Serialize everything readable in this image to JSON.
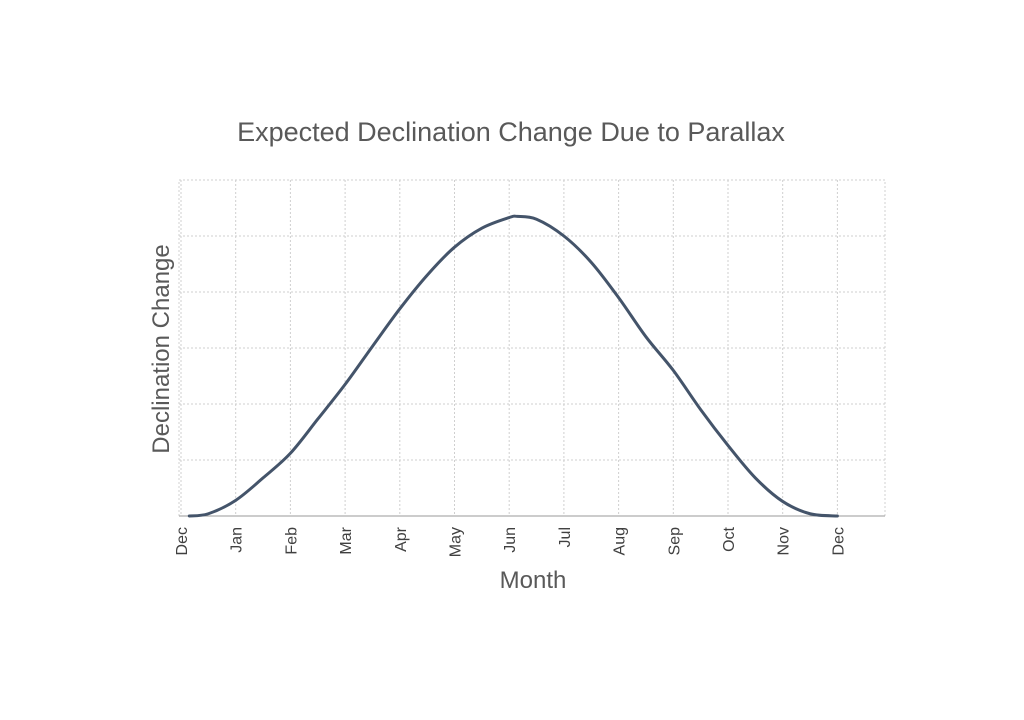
{
  "chart_data": {
    "type": "line",
    "title": "Expected Declination Change Due to Parallax",
    "xlabel": "Month",
    "ylabel": "Declination Change",
    "categories": [
      "Dec",
      "Jan",
      "Feb",
      "Mar",
      "Apr",
      "May",
      "Jun",
      "Jul",
      "Aug",
      "Sep",
      "Oct",
      "Nov",
      "Dec"
    ],
    "x": [
      0,
      1,
      2,
      3,
      4,
      5,
      6,
      7,
      8,
      9,
      10,
      11,
      12
    ],
    "xlim": [
      0,
      13
    ],
    "ylim": [
      0,
      6
    ],
    "yticks": [
      0,
      1,
      2,
      3,
      4,
      5,
      6
    ],
    "ytick_labels_shown": false,
    "series": [
      {
        "color": "#44546a",
        "points": [
          {
            "x": 0.15,
            "y": 0.0
          },
          {
            "x": 0.5,
            "y": 0.04
          },
          {
            "x": 1.0,
            "y": 0.28
          },
          {
            "x": 1.5,
            "y": 0.68
          },
          {
            "x": 2.0,
            "y": 1.12
          },
          {
            "x": 2.5,
            "y": 1.73
          },
          {
            "x": 3.0,
            "y": 2.35
          },
          {
            "x": 3.5,
            "y": 3.03
          },
          {
            "x": 4.0,
            "y": 3.7
          },
          {
            "x": 4.5,
            "y": 4.3
          },
          {
            "x": 5.0,
            "y": 4.8
          },
          {
            "x": 5.5,
            "y": 5.14
          },
          {
            "x": 6.0,
            "y": 5.33
          },
          {
            "x": 6.15,
            "y": 5.35
          },
          {
            "x": 6.5,
            "y": 5.3
          },
          {
            "x": 7.0,
            "y": 5.0
          },
          {
            "x": 7.5,
            "y": 4.53
          },
          {
            "x": 8.0,
            "y": 3.9
          },
          {
            "x": 8.5,
            "y": 3.2
          },
          {
            "x": 9.0,
            "y": 2.6
          },
          {
            "x": 9.5,
            "y": 1.9
          },
          {
            "x": 10.0,
            "y": 1.26
          },
          {
            "x": 10.5,
            "y": 0.68
          },
          {
            "x": 11.0,
            "y": 0.26
          },
          {
            "x": 11.5,
            "y": 0.04
          },
          {
            "x": 12.0,
            "y": 0.0
          }
        ]
      }
    ],
    "grid": true,
    "legend": "none"
  }
}
